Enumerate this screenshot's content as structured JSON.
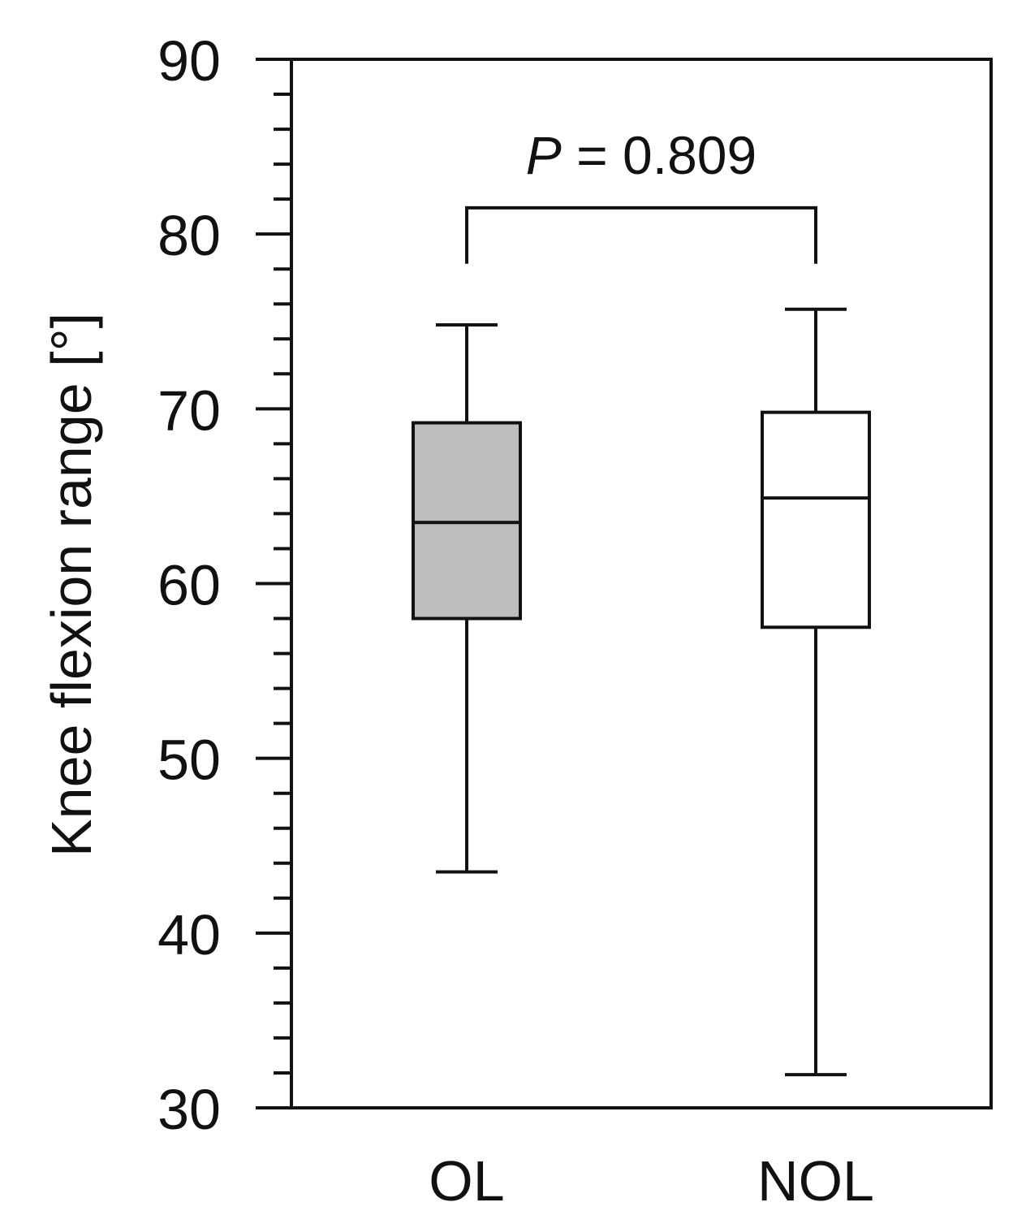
{
  "chart_data": {
    "type": "box",
    "xlabel": "",
    "ylabel": "Knee flexion range [°]",
    "ylim": [
      30,
      90
    ],
    "yticks": [
      "30",
      "40",
      "50",
      "60",
      "70",
      "80",
      "90"
    ],
    "ytick_values": [
      30,
      40,
      50,
      60,
      70,
      80,
      90
    ],
    "minor_tick_step": 2,
    "categories": [
      "OL",
      "NOL"
    ],
    "boxes": [
      {
        "label": "OL",
        "min": 43.5,
        "q1": 58.0,
        "median": 63.5,
        "q3": 69.2,
        "max": 74.8,
        "fill": "#bdbdbd"
      },
      {
        "label": "NOL",
        "min": 31.9,
        "q1": 57.5,
        "median": 64.9,
        "q3": 69.8,
        "max": 75.7,
        "fill": "#ffffff"
      }
    ],
    "annotation": {
      "p_symbol": "P",
      "p_rest": " = 0.809",
      "bracket_level": 81.5,
      "bracket_drop_to": 78.3
    },
    "grid": false,
    "legend": "none"
  }
}
